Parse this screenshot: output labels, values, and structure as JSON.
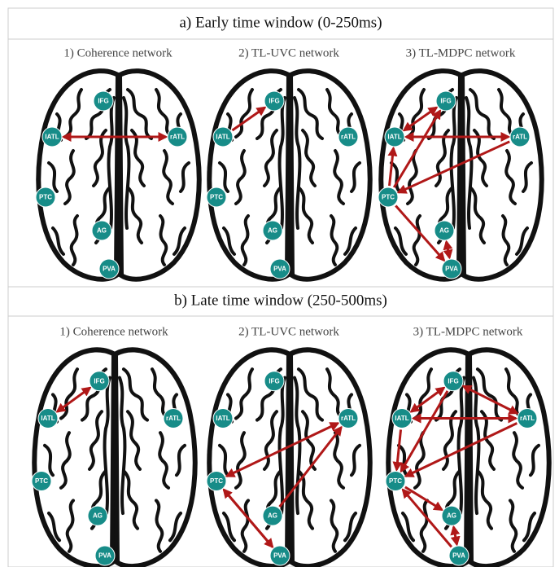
{
  "sections": [
    {
      "title": "a)  Early time window (0-250ms)",
      "panels": [
        {
          "title": "1) Coherence network",
          "nodes": [
            "IFG",
            "lATL",
            "rATL",
            "PTC",
            "AG",
            "PVA"
          ]
        },
        {
          "title": "2) TL-UVC network",
          "nodes": [
            "IFG",
            "lATL",
            "rATL",
            "PTC",
            "AG",
            "PVA"
          ]
        },
        {
          "title": "3) TL-MDPC network",
          "nodes": [
            "IFG",
            "lATL",
            "rATL",
            "PTC",
            "AG",
            "PVA"
          ]
        }
      ]
    },
    {
      "title": "b)  Late time window (250-500ms)",
      "panels": [
        {
          "title": "1) Coherence network",
          "nodes": [
            "IFG",
            "lATL",
            "rATL",
            "PTC",
            "AG",
            "PVA"
          ]
        },
        {
          "title": "2) TL-UVC network",
          "nodes": [
            "IFG",
            "lATL",
            "rATL",
            "PTC",
            "AG",
            "PVA"
          ]
        },
        {
          "title": "3) TL-MDPC network",
          "nodes": [
            "IFG",
            "lATL",
            "rATL",
            "PTC",
            "AG",
            "PVA"
          ]
        }
      ]
    }
  ]
}
